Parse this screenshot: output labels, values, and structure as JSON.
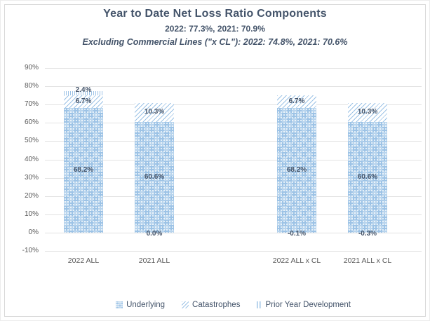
{
  "header": {
    "title": "Year to Date Net Loss Ratio Components",
    "subtitle": "2022: 77.3%, 2021: 70.9%",
    "subtitle2": "Excluding Commercial Lines (\"x CL\"): 2022: 74.8%, 2021: 70.6%"
  },
  "chart_data": {
    "type": "bar",
    "stacked": true,
    "title": "Year to Date Net Loss Ratio Components",
    "categories": [
      "2022 ALL",
      "2021 ALL",
      "2022 ALL x CL",
      "2021 ALL x CL"
    ],
    "series": [
      {
        "name": "Underlying",
        "pattern": "underlying",
        "values": [
          68.2,
          60.6,
          68.2,
          60.6
        ]
      },
      {
        "name": "Catastrophes",
        "pattern": "cat",
        "values": [
          6.7,
          10.3,
          6.7,
          10.3
        ]
      },
      {
        "name": "Prior Year Development",
        "pattern": "pyd",
        "values": [
          2.4,
          0.0,
          -0.1,
          -0.3
        ]
      }
    ],
    "totals": [
      77.3,
      70.9,
      74.8,
      70.6
    ],
    "y_axis": {
      "min": -10,
      "max": 90,
      "step": 10,
      "ticks": [
        "90%",
        "80%",
        "70%",
        "60%",
        "50%",
        "40%",
        "30%",
        "20%",
        "10%",
        "0%",
        "-10%"
      ]
    },
    "legend": [
      "Underlying",
      "Catastrophes",
      "Prior Year Development"
    ],
    "layout_hints": {
      "grid": true,
      "legend_position": "bottom",
      "bar_slots": [
        0,
        1,
        3,
        4
      ],
      "total_slots": 5,
      "gap_between_groups": true
    },
    "colors": {
      "bar_blue": "#9dc3e6",
      "label_dark": "#44546a",
      "axis_gray": "#595959",
      "gridline": "#e2e2e2"
    }
  }
}
